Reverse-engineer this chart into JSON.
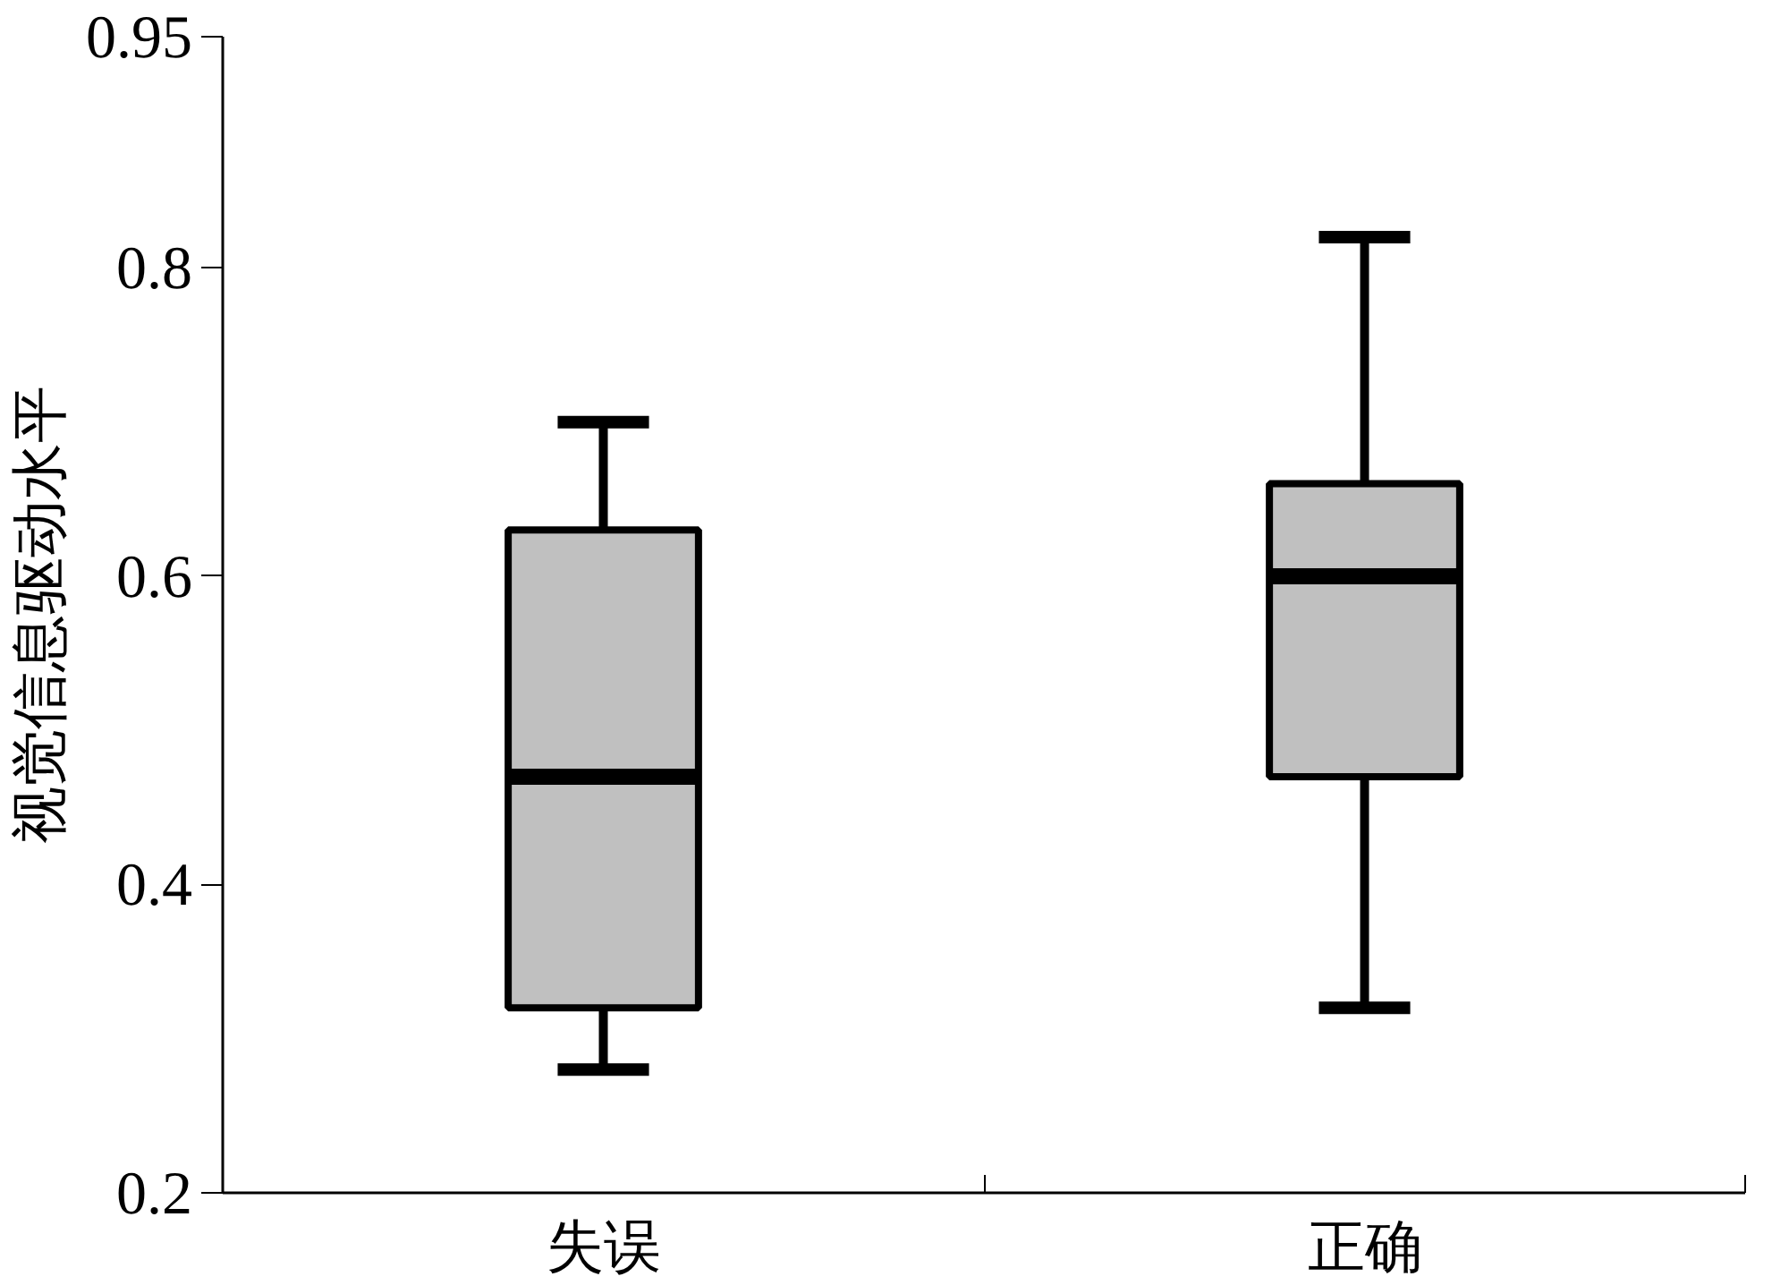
{
  "chart_data": {
    "type": "box",
    "ylabel": "视觉信息驱动水平",
    "categories": [
      "失误",
      "正确"
    ],
    "boxes": [
      {
        "low": 0.28,
        "q1": 0.32,
        "median": 0.47,
        "q3": 0.63,
        "high": 0.7
      },
      {
        "low": 0.32,
        "q1": 0.47,
        "median": 0.6,
        "q3": 0.66,
        "high": 0.82
      }
    ],
    "color": "#c0c0c0",
    "ylim": [
      0.2,
      0.95
    ],
    "yticks": [
      0.2,
      0.4,
      0.6,
      0.8,
      0.95
    ],
    "grid": false
  }
}
